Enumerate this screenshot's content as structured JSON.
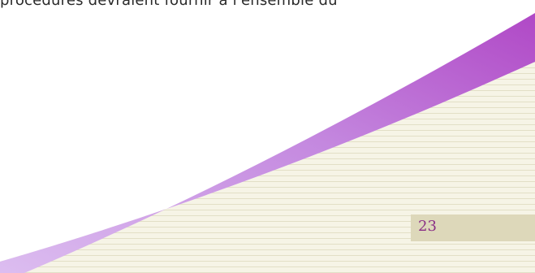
{
  "document": {
    "body_text": "procédures devraient fournir à l'ensemble du",
    "page_number": "23"
  },
  "colors": {
    "swoosh_light": "#d9b3ea",
    "swoosh_dark": "#b653c9",
    "lined_background": "#f6f4e6",
    "ruled_lines": "#e2dfc6",
    "page_number_tab": "#ddd8ba",
    "page_number_text": "#8a2f86",
    "body_text": "#2a2a2a"
  }
}
